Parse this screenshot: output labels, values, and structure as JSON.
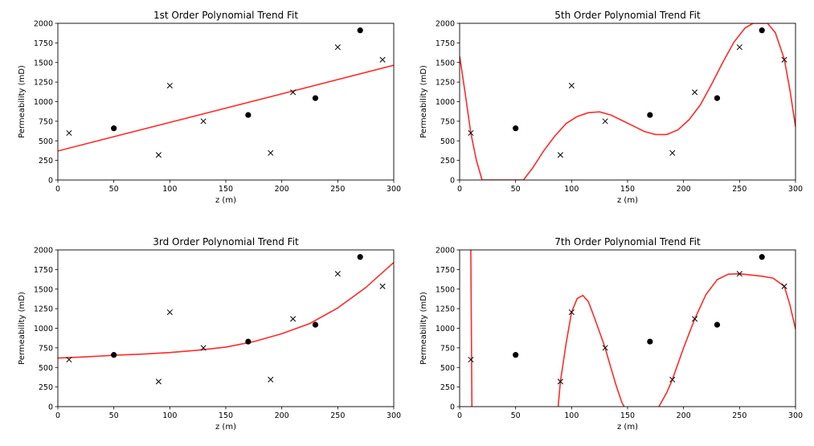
{
  "chart_data": [
    {
      "type": "scatter",
      "title": "1st Order Polynomial Trend Fit",
      "xlabel": "z (m)",
      "ylabel": "Permeability (mD)",
      "xlim": [
        0,
        300
      ],
      "ylim": [
        0,
        2000
      ],
      "xticks": [
        "0",
        "50",
        "100",
        "150",
        "200",
        "250",
        "300"
      ],
      "yticks": [
        "0",
        "250",
        "500",
        "750",
        "1000",
        "1250",
        "1500",
        "1750",
        "2000"
      ],
      "grid": false,
      "fit_color": "#ff2a2a",
      "series": [
        {
          "marker": "dot",
          "points": [
            [
              50,
              660
            ],
            [
              170,
              830
            ],
            [
              230,
              1045
            ],
            [
              270,
              1910
            ]
          ]
        },
        {
          "marker": "x",
          "points": [
            [
              10,
              600
            ],
            [
              90,
              320
            ],
            [
              100,
              1205
            ],
            [
              130,
              750
            ],
            [
              190,
              345
            ],
            [
              210,
              1120
            ],
            [
              250,
              1695
            ],
            [
              290,
              1535
            ]
          ]
        },
        {
          "marker": "fit-line",
          "points": [
            [
              0,
              370
            ],
            [
              300,
              1465
            ]
          ]
        }
      ]
    },
    {
      "type": "scatter",
      "title": "5th Order Polynomial Trend Fit",
      "xlabel": "z (m)",
      "ylabel": "Permeability (mD)",
      "xlim": [
        0,
        300
      ],
      "ylim": [
        0,
        2000
      ],
      "xticks": [
        "0",
        "50",
        "100",
        "150",
        "200",
        "250",
        "300"
      ],
      "yticks": [
        "0",
        "250",
        "500",
        "750",
        "1000",
        "1250",
        "1500",
        "1750",
        "2000"
      ],
      "grid": false,
      "fit_color": "#ff2a2a",
      "series": [
        {
          "marker": "dot",
          "points": [
            [
              50,
              660
            ],
            [
              170,
              830
            ],
            [
              230,
              1045
            ],
            [
              270,
              1910
            ]
          ]
        },
        {
          "marker": "x",
          "points": [
            [
              10,
              600
            ],
            [
              90,
              320
            ],
            [
              100,
              1205
            ],
            [
              130,
              750
            ],
            [
              190,
              345
            ],
            [
              210,
              1120
            ],
            [
              250,
              1695
            ],
            [
              290,
              1535
            ]
          ]
        },
        {
          "marker": "fit-line",
          "points": [
            [
              0,
              1580
            ],
            [
              5,
              1100
            ],
            [
              10,
              600
            ],
            [
              15,
              250
            ],
            [
              20,
              0
            ],
            [
              57,
              0
            ],
            [
              65,
              150
            ],
            [
              75,
              370
            ],
            [
              85,
              560
            ],
            [
              95,
              720
            ],
            [
              105,
              810
            ],
            [
              115,
              860
            ],
            [
              125,
              870
            ],
            [
              135,
              830
            ],
            [
              145,
              760
            ],
            [
              155,
              690
            ],
            [
              165,
              620
            ],
            [
              175,
              580
            ],
            [
              185,
              580
            ],
            [
              195,
              640
            ],
            [
              205,
              770
            ],
            [
              215,
              960
            ],
            [
              225,
              1220
            ],
            [
              235,
              1500
            ],
            [
              245,
              1760
            ],
            [
              255,
              1940
            ],
            [
              262,
              2000
            ],
            [
              275,
              2000
            ],
            [
              282,
              1880
            ],
            [
              290,
              1540
            ],
            [
              295,
              1150
            ],
            [
              300,
              680
            ]
          ]
        }
      ]
    },
    {
      "type": "scatter",
      "title": "3rd Order Polynomial Trend Fit",
      "xlabel": "z (m)",
      "ylabel": "Permeability (mD)",
      "xlim": [
        0,
        300
      ],
      "ylim": [
        0,
        2000
      ],
      "xticks": [
        "0",
        "50",
        "100",
        "150",
        "200",
        "250",
        "300"
      ],
      "yticks": [
        "0",
        "250",
        "500",
        "750",
        "1000",
        "1250",
        "1500",
        "1750",
        "2000"
      ],
      "grid": false,
      "fit_color": "#ff2a2a",
      "series": [
        {
          "marker": "dot",
          "points": [
            [
              50,
              660
            ],
            [
              170,
              830
            ],
            [
              230,
              1045
            ],
            [
              270,
              1910
            ]
          ]
        },
        {
          "marker": "x",
          "points": [
            [
              10,
              600
            ],
            [
              90,
              320
            ],
            [
              100,
              1205
            ],
            [
              130,
              750
            ],
            [
              190,
              345
            ],
            [
              210,
              1120
            ],
            [
              250,
              1695
            ],
            [
              290,
              1535
            ]
          ]
        },
        {
          "marker": "fit-line",
          "points": [
            [
              0,
              620
            ],
            [
              25,
              635
            ],
            [
              50,
              655
            ],
            [
              75,
              670
            ],
            [
              100,
              690
            ],
            [
              125,
              720
            ],
            [
              150,
              760
            ],
            [
              175,
              830
            ],
            [
              200,
              930
            ],
            [
              225,
              1060
            ],
            [
              250,
              1260
            ],
            [
              275,
              1520
            ],
            [
              300,
              1840
            ]
          ]
        }
      ]
    },
    {
      "type": "scatter",
      "title": "7th Order Polynomial Trend Fit",
      "xlabel": "z (m)",
      "ylabel": "Permeability (mD)",
      "xlim": [
        0,
        300
      ],
      "ylim": [
        0,
        2000
      ],
      "xticks": [
        "0",
        "50",
        "100",
        "150",
        "200",
        "250",
        "300"
      ],
      "yticks": [
        "0",
        "250",
        "500",
        "750",
        "1000",
        "1250",
        "1500",
        "1750",
        "2000"
      ],
      "grid": false,
      "fit_color": "#ff2a2a",
      "series": [
        {
          "marker": "dot",
          "points": [
            [
              50,
              660
            ],
            [
              170,
              830
            ],
            [
              230,
              1045
            ],
            [
              270,
              1910
            ]
          ]
        },
        {
          "marker": "x",
          "points": [
            [
              10,
              600
            ],
            [
              90,
              320
            ],
            [
              100,
              1205
            ],
            [
              130,
              750
            ],
            [
              190,
              345
            ],
            [
              210,
              1120
            ],
            [
              250,
              1695
            ],
            [
              290,
              1535
            ]
          ]
        },
        {
          "marker": "fit-line-segments",
          "segments": [
            [
              [
                10,
                2000
              ],
              [
                10.5,
                1000
              ],
              [
                11,
                0
              ]
            ],
            [
              [
                88,
                0
              ],
              [
                90,
                320
              ],
              [
                95,
                800
              ],
              [
                100,
                1205
              ],
              [
                105,
                1380
              ],
              [
                110,
                1420
              ],
              [
                115,
                1340
              ],
              [
                120,
                1150
              ],
              [
                125,
                950
              ],
              [
                130,
                750
              ],
              [
                135,
                500
              ],
              [
                140,
                260
              ],
              [
                145,
                50
              ],
              [
                147,
                0
              ]
            ],
            [
              [
                178,
                0
              ],
              [
                185,
                180
              ],
              [
                190,
                345
              ],
              [
                200,
                750
              ],
              [
                210,
                1120
              ],
              [
                220,
                1430
              ],
              [
                230,
                1620
              ],
              [
                240,
                1690
              ],
              [
                250,
                1695
              ],
              [
                260,
                1680
              ],
              [
                270,
                1665
              ],
              [
                280,
                1640
              ],
              [
                290,
                1535
              ],
              [
                295,
                1300
              ],
              [
                300,
                990
              ]
            ]
          ]
        }
      ]
    }
  ]
}
